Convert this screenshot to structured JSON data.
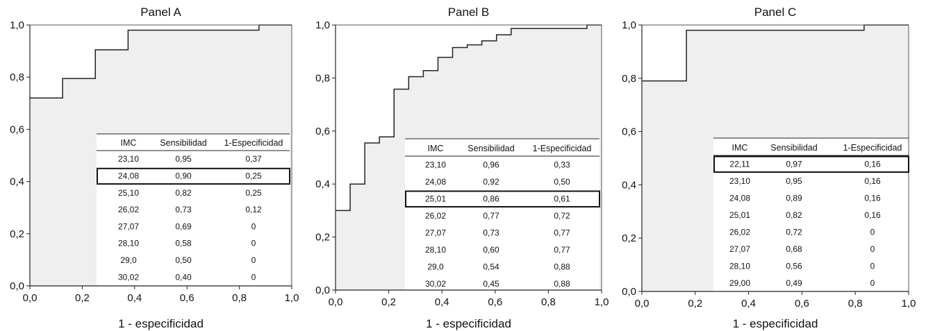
{
  "chart_data": [
    {
      "type": "line",
      "title": "Panel A",
      "xlabel": "1 - especificidad",
      "ylabel": "",
      "xlim": [
        0,
        1
      ],
      "ylim": [
        0,
        1
      ],
      "x_ticks": [
        "0,0",
        "0,2",
        "0,4",
        "0,6",
        "0,8",
        "1,0"
      ],
      "y_ticks": [
        "0,0",
        "0,2",
        "0,4",
        "0,6",
        "0,8",
        "1,0"
      ],
      "series": [
        {
          "values": [
            [
              0,
              0.72
            ],
            [
              0.125,
              0.72
            ],
            [
              0.125,
              0.795
            ],
            [
              0.25,
              0.795
            ],
            [
              0.25,
              0.905
            ],
            [
              0.375,
              0.905
            ],
            [
              0.375,
              0.98
            ],
            [
              0.875,
              0.98
            ],
            [
              0.875,
              1.0
            ],
            [
              1.0,
              1.0
            ]
          ]
        }
      ],
      "table": {
        "headers": [
          "IMC",
          "Sensibilidad",
          "1-Especificidad"
        ],
        "rows": [
          [
            "23,10",
            "0,95",
            "0,37"
          ],
          [
            "24,08",
            "0,90",
            "0,25"
          ],
          [
            "25,10",
            "0,82",
            "0,25"
          ],
          [
            "26,02",
            "0,73",
            "0,12"
          ],
          [
            "27,07",
            "0,69",
            "0"
          ],
          [
            "28,10",
            "0,58",
            "0"
          ],
          [
            "29,0",
            "0,50",
            "0"
          ],
          [
            "30,02",
            "0,40",
            "0"
          ]
        ],
        "highlighted_row": 1
      }
    },
    {
      "type": "line",
      "title": "Panel B",
      "xlabel": "1 - especificidad",
      "ylabel": "",
      "xlim": [
        0,
        1
      ],
      "ylim": [
        0,
        1
      ],
      "x_ticks": [
        "0,0",
        "0,2",
        "0,4",
        "0,6",
        "0,8",
        "1,0"
      ],
      "y_ticks": [
        "0,0",
        "0,2",
        "0,4",
        "0,6",
        "0,8",
        "1,0"
      ],
      "series": [
        {
          "values": [
            [
              0,
              0.3
            ],
            [
              0.055,
              0.3
            ],
            [
              0.055,
              0.4
            ],
            [
              0.11,
              0.4
            ],
            [
              0.11,
              0.555
            ],
            [
              0.165,
              0.555
            ],
            [
              0.165,
              0.578
            ],
            [
              0.22,
              0.578
            ],
            [
              0.22,
              0.758
            ],
            [
              0.275,
              0.758
            ],
            [
              0.275,
              0.805
            ],
            [
              0.33,
              0.805
            ],
            [
              0.33,
              0.828
            ],
            [
              0.385,
              0.828
            ],
            [
              0.385,
              0.878
            ],
            [
              0.44,
              0.878
            ],
            [
              0.44,
              0.915
            ],
            [
              0.495,
              0.915
            ],
            [
              0.495,
              0.925
            ],
            [
              0.55,
              0.925
            ],
            [
              0.55,
              0.94
            ],
            [
              0.605,
              0.94
            ],
            [
              0.605,
              0.963
            ],
            [
              0.66,
              0.963
            ],
            [
              0.66,
              0.987
            ],
            [
              0.945,
              0.987
            ],
            [
              0.945,
              1.0
            ],
            [
              1.0,
              1.0
            ]
          ]
        }
      ],
      "table": {
        "headers": [
          "IMC",
          "Sensibilidad",
          "1-Especificidad"
        ],
        "rows": [
          [
            "23,10",
            "0,96",
            "0,33"
          ],
          [
            "24,08",
            "0,92",
            "0,50"
          ],
          [
            "25,01",
            "0,86",
            "0,61"
          ],
          [
            "26,02",
            "0,77",
            "0,72"
          ],
          [
            "27,07",
            "0,73",
            "0,77"
          ],
          [
            "28,10",
            "0,60",
            "0,77"
          ],
          [
            "29,0",
            "0,54",
            "0,88"
          ],
          [
            "30,02",
            "0,45",
            "0,88"
          ]
        ],
        "highlighted_row": 2
      }
    },
    {
      "type": "line",
      "title": "Panel C",
      "xlabel": "1 - especificidad",
      "ylabel": "",
      "xlim": [
        0,
        1
      ],
      "ylim": [
        0,
        1
      ],
      "x_ticks": [
        "0,0",
        "0,2",
        "0,4",
        "0,6",
        "0,8",
        "1,0"
      ],
      "y_ticks": [
        "0,0",
        "0,2",
        "0,4",
        "0,6",
        "0,8",
        "1,0"
      ],
      "series": [
        {
          "values": [
            [
              0,
              0.79
            ],
            [
              0.167,
              0.79
            ],
            [
              0.167,
              0.98
            ],
            [
              0.833,
              0.98
            ],
            [
              0.833,
              1.0
            ],
            [
              1.0,
              1.0
            ]
          ]
        }
      ],
      "table": {
        "headers": [
          "IMC",
          "Sensibilidad",
          "1-Especificidad"
        ],
        "rows": [
          [
            "22,11",
            "0,97",
            "0,16"
          ],
          [
            "23,10",
            "0,95",
            "0,16"
          ],
          [
            "24,08",
            "0,89",
            "0,16"
          ],
          [
            "25,01",
            "0,82",
            "0,16"
          ],
          [
            "26,02",
            "0,72",
            "0"
          ],
          [
            "27,07",
            "0,68",
            "0"
          ],
          [
            "28,10",
            "0,56",
            "0"
          ],
          [
            "29,00",
            "0,49",
            "0"
          ]
        ],
        "highlighted_row": 0
      }
    }
  ]
}
